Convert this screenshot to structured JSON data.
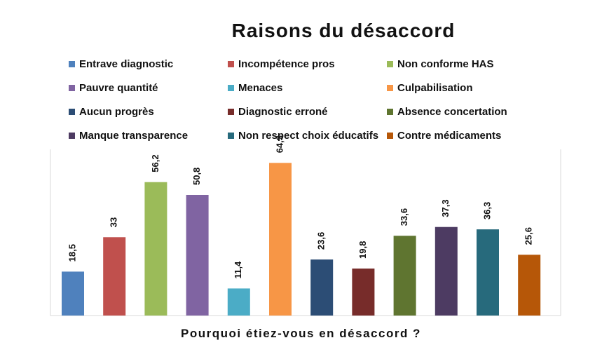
{
  "chart_data": {
    "type": "bar",
    "title": "Raisons du désaccord",
    "xlabel": "Pourquoi étiez-vous en désaccord ?",
    "ylabel": "",
    "ylim": [
      0,
      70
    ],
    "grid": false,
    "legend_position": "top",
    "series": [
      {
        "name": "Entrave diagnostic",
        "value": 18.5,
        "label": "18,5",
        "color": "#4F81BD"
      },
      {
        "name": "Incompétence pros",
        "value": 33,
        "label": "33",
        "color": "#C0504D"
      },
      {
        "name": "Non conforme HAS",
        "value": 56.2,
        "label": "56,2",
        "color": "#9BBB59"
      },
      {
        "name": "Pauvre quantité",
        "value": 50.8,
        "label": "50,8",
        "color": "#8064A2"
      },
      {
        "name": "Menaces",
        "value": 11.4,
        "label": "11,4",
        "color": "#4BACC6"
      },
      {
        "name": "Culpabilisation",
        "value": 64.3,
        "label": "64,3",
        "color": "#F79646"
      },
      {
        "name": "Aucun progrès",
        "value": 23.6,
        "label": "23,6",
        "color": "#2C4D75"
      },
      {
        "name": "Diagnostic erroné",
        "value": 19.8,
        "label": "19,8",
        "color": "#772C2A"
      },
      {
        "name": "Absence concertation",
        "value": 33.6,
        "label": "33,6",
        "color": "#5F7530"
      },
      {
        "name": "Manque transparence",
        "value": 37.3,
        "label": "37,3",
        "color": "#4D3B62"
      },
      {
        "name": "Non respect choix éducatifs",
        "value": 36.3,
        "label": "36,3",
        "color": "#276A7C"
      },
      {
        "name": "Contre médicaments",
        "value": 25.6,
        "label": "25,6",
        "color": "#B65708"
      }
    ]
  }
}
